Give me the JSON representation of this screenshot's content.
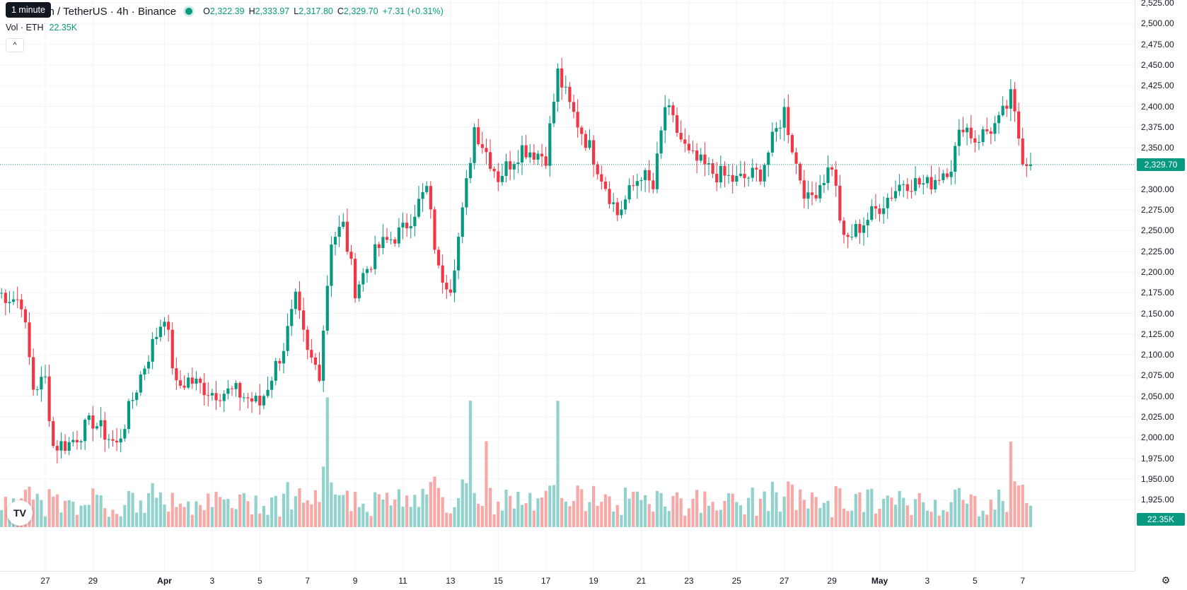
{
  "legend": {
    "symbol": "um / TetherUS · 4h · Binance",
    "open_key": "O",
    "open": "2,322.39",
    "high_key": "H",
    "high": "2,333.97",
    "low_key": "L",
    "low": "2,317.80",
    "close_key": "C",
    "close": "2,329.70",
    "change": "+7.31 (+0.31%)",
    "vol_label": "Vol · ETH",
    "vol_value": "22.35K",
    "collapse_symbol": "^"
  },
  "tooltip": {
    "text": "1 minute"
  },
  "logo": {
    "text": "TV"
  },
  "settings_icon": "⚙",
  "price_axis": {
    "labels": [
      "2,525.00",
      "2,500.00",
      "2,475.00",
      "2,450.00",
      "2,425.00",
      "2,400.00",
      "2,375.00",
      "2,350.00",
      "2,300.00",
      "2,275.00",
      "2,250.00",
      "2,225.00",
      "2,200.00",
      "2,175.00",
      "2,150.00",
      "2,125.00",
      "2,100.00",
      "2,075.00",
      "2,050.00",
      "2,025.00",
      "2,000.00",
      "1,975.00",
      "1,950.00",
      "1,925.00"
    ],
    "current_price": "2,329.70",
    "current_volume": "22.35K"
  },
  "time_axis": {
    "labels": [
      "27",
      "29",
      "Apr",
      "3",
      "5",
      "7",
      "9",
      "11",
      "13",
      "15",
      "17",
      "19",
      "21",
      "23",
      "25",
      "27",
      "29",
      "May",
      "3",
      "5",
      "7"
    ],
    "bold": [
      "Apr",
      "May"
    ]
  },
  "colors": {
    "up": "#089981",
    "down": "#f23645",
    "up_vol": "#92d2cc",
    "down_vol": "#f7a9a7",
    "grid": "#f0f3fa"
  },
  "chart_data": {
    "type": "candlestick",
    "symbol": "um / TetherUS",
    "interval": "4h",
    "exchange": "Binance",
    "price_range": [
      1915,
      2525
    ],
    "last_price": 2329.7,
    "last_volume": "22.35K",
    "keypoints": [
      {
        "date": "Mar 25",
        "price": 2175
      },
      {
        "date": "Mar 26",
        "price": 2165
      },
      {
        "date": "Mar 26 12h",
        "price": 2060
      },
      {
        "date": "Mar 27",
        "price": 2070
      },
      {
        "date": "Mar 27 8h",
        "price": 1990
      },
      {
        "date": "Mar 28",
        "price": 1993
      },
      {
        "date": "Mar 29",
        "price": 2020
      },
      {
        "date": "Mar 30",
        "price": 1990
      },
      {
        "date": "Mar 31",
        "price": 2075
      },
      {
        "date": "Apr 1",
        "price": 2150
      },
      {
        "date": "Apr 1 12h",
        "price": 2060
      },
      {
        "date": "Apr 2",
        "price": 2070
      },
      {
        "date": "Apr 3",
        "price": 2055
      },
      {
        "date": "Apr 4",
        "price": 2055
      },
      {
        "date": "Apr 5",
        "price": 2040
      },
      {
        "date": "Apr 6",
        "price": 2110
      },
      {
        "date": "Apr 6 12h",
        "price": 2165
      },
      {
        "date": "Apr 7",
        "price": 2100
      },
      {
        "date": "Apr 7 12h",
        "price": 2080
      },
      {
        "date": "Apr 8",
        "price": 2240
      },
      {
        "date": "Apr 8 12h",
        "price": 2255
      },
      {
        "date": "Apr 9",
        "price": 2180
      },
      {
        "date": "Apr 10",
        "price": 2230
      },
      {
        "date": "Apr 11",
        "price": 2250
      },
      {
        "date": "Apr 12",
        "price": 2300
      },
      {
        "date": "Apr 12 12h",
        "price": 2200
      },
      {
        "date": "Apr 13",
        "price": 2185
      },
      {
        "date": "Apr 13 12h",
        "price": 2270
      },
      {
        "date": "Apr 14",
        "price": 2375
      },
      {
        "date": "Apr 15",
        "price": 2315
      },
      {
        "date": "Apr 16",
        "price": 2350
      },
      {
        "date": "Apr 17",
        "price": 2340
      },
      {
        "date": "Apr 17 12h",
        "price": 2440
      },
      {
        "date": "Apr 18",
        "price": 2400
      },
      {
        "date": "Apr 19",
        "price": 2340
      },
      {
        "date": "Apr 20",
        "price": 2270
      },
      {
        "date": "Apr 21",
        "price": 2320
      },
      {
        "date": "Apr 21 12h",
        "price": 2300
      },
      {
        "date": "Apr 22",
        "price": 2400
      },
      {
        "date": "Apr 23",
        "price": 2340
      },
      {
        "date": "Apr 24",
        "price": 2320
      },
      {
        "date": "Apr 25",
        "price": 2310
      },
      {
        "date": "Apr 26",
        "price": 2320
      },
      {
        "date": "Apr 27",
        "price": 2395
      },
      {
        "date": "Apr 27 12h",
        "price": 2330
      },
      {
        "date": "Apr 28",
        "price": 2285
      },
      {
        "date": "Apr 29",
        "price": 2330
      },
      {
        "date": "Apr 29 12h",
        "price": 2235
      },
      {
        "date": "Apr 30",
        "price": 2250
      },
      {
        "date": "May 1",
        "price": 2280
      },
      {
        "date": "May 2",
        "price": 2310
      },
      {
        "date": "May 3",
        "price": 2305
      },
      {
        "date": "May 4",
        "price": 2330
      },
      {
        "date": "May 4 12h",
        "price": 2380
      },
      {
        "date": "May 5",
        "price": 2360
      },
      {
        "date": "May 6",
        "price": 2380
      },
      {
        "date": "May 6 12h",
        "price": 2410
      },
      {
        "date": "May 7",
        "price": 2340
      },
      {
        "date": "May 7 8h",
        "price": 2329.7
      }
    ],
    "volume_spikes": [
      {
        "date": "Apr 7 20h",
        "tier": "large",
        "dir": "up"
      },
      {
        "date": "Apr 13 20h",
        "tier": "large",
        "dir": "up"
      },
      {
        "date": "Apr 17 12h",
        "tier": "large",
        "dir": "up"
      },
      {
        "date": "Apr 14 12h",
        "tier": "medium",
        "dir": "down"
      },
      {
        "date": "May 6 12h",
        "tier": "medium",
        "dir": "down"
      }
    ]
  }
}
